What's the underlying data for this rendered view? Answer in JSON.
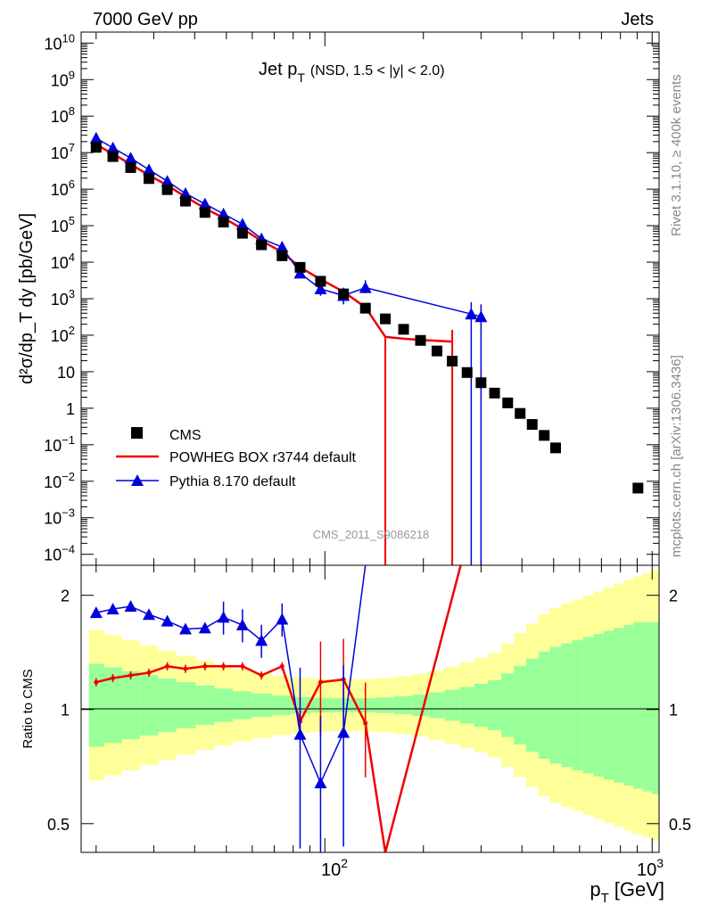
{
  "header": {
    "left": "7000 GeV pp",
    "right": "Jets"
  },
  "side_labels": {
    "rivet": "Rivet 3.1.10, ≥ 400k events",
    "mcplots": "mcplots.cern.ch [arXiv:1306.3436]"
  },
  "watermark": "CMS_2011_S9086218",
  "colors": {
    "cms": "#000000",
    "powheg": "#ee0000",
    "pythia": "#0000dd",
    "band_inner": "#99ff99",
    "band_outer": "#ffff99"
  },
  "chart_data": [
    {
      "type": "scatter",
      "title": "Jet p_T (NSD, 1.5 < |y| < 2.0)",
      "title_main": "Jet p",
      "title_sub": "T",
      "title_tail": "(NSD, 1.5 < |y| < 2.0)",
      "ylabel": "d²σ/dp_T dy [pb/GeV]",
      "yscale": "log",
      "xscale": "log",
      "ylim": [
        5e-05,
        20000000000
      ],
      "xlim": [
        18,
        1050
      ],
      "legend_position": "bottom-left",
      "ytick_labels": [
        "10^-4",
        "10^-3",
        "10^-2",
        "10^-1",
        "1",
        "10",
        "10^2",
        "10^3",
        "10^4",
        "10^5",
        "10^6",
        "10^7",
        "10^8",
        "10^9",
        "10^10"
      ],
      "series": [
        {
          "name": "CMS",
          "marker": "square",
          "x": [
            20,
            22.5,
            25.5,
            29,
            33,
            37.5,
            43,
            49,
            56,
            64,
            74,
            84,
            97,
            114,
            133,
            153,
            174,
            196,
            220,
            245,
            272,
            300,
            330,
            362,
            395,
            430,
            468,
            507,
            548,
            592,
            638,
            686,
            737,
            790,
            846,
            905,
            967,
            1032
          ],
          "y": [
            14000000,
            7800000,
            3900000,
            1950000,
            970000,
            470000,
            230000,
            125000,
            62000,
            30000,
            15000,
            7200,
            3000,
            1350,
            550,
            280,
            145,
            72,
            37,
            19.5,
            9.5,
            5.0,
            2.6,
            1.4,
            0.72,
            0.36,
            0.18,
            0.082,
            null,
            null,
            null,
            null,
            null,
            null,
            null,
            null,
            null,
            null
          ]
        },
        {
          "name": "CMS",
          "marker": "square",
          "x": [
            905
          ],
          "y": [
            0.0065
          ]
        },
        {
          "name": "POWHEG BOX r3744 default",
          "marker": "line",
          "x": [
            20,
            22.5,
            25.5,
            29,
            33,
            37.5,
            43,
            49,
            56,
            64,
            74,
            84,
            97,
            114,
            133,
            153,
            174,
            196,
            220,
            245
          ],
          "y": [
            16500000,
            9300000,
            4800000,
            2400000,
            1270000,
            620000,
            300000,
            162000,
            82000,
            38500,
            19000,
            7200,
            3400,
            1550,
            580,
            90,
            80,
            74,
            70,
            67
          ]
        },
        {
          "name": "Pythia 8.170 default",
          "marker": "triangle",
          "x": [
            20,
            22.5,
            25.5,
            29,
            33,
            37.5,
            43,
            49,
            56,
            64,
            74,
            84,
            97,
            114,
            133,
            280,
            300
          ],
          "y": [
            25000000,
            13500000,
            7100000,
            3400000,
            1650000,
            760000,
            395000,
            210000,
            110000,
            44000,
            26000,
            5000,
            1850,
            1220,
            2000,
            380,
            320
          ]
        }
      ],
      "legend": [
        "CMS",
        "POWHEG BOX r3744 default",
        "Pythia 8.170 default"
      ]
    },
    {
      "type": "line",
      "ylabel": "Ratio to CMS",
      "xlabel": "p_T [GeV]",
      "xlabel_main": "p",
      "xlabel_sub": "T",
      "xlabel_tail": "[GeV]",
      "xscale": "log",
      "yscale": "log",
      "ylim": [
        0.42,
        2.4
      ],
      "ytick_labels": [
        "0.5",
        "1",
        "2"
      ],
      "xtick_labels": [
        "10^2",
        "10^3"
      ],
      "series": [
        {
          "name": "POWHEG BOX r3744 default",
          "x": [
            20,
            22.5,
            25.5,
            29,
            33,
            37.5,
            43,
            49,
            56,
            64,
            74,
            84,
            97,
            114,
            133,
            153
          ],
          "y": [
            1.18,
            1.21,
            1.23,
            1.25,
            1.3,
            1.28,
            1.3,
            1.3,
            1.3,
            1.23,
            1.3,
            0.93,
            1.18,
            1.2,
            0.92,
            0.35
          ]
        },
        {
          "name": "Pythia 8.170 default",
          "x": [
            20,
            22.5,
            25.5,
            29,
            33,
            37.5,
            43,
            49,
            56,
            64,
            74,
            84,
            97,
            114,
            133
          ],
          "y": [
            1.8,
            1.84,
            1.87,
            1.78,
            1.71,
            1.63,
            1.64,
            1.75,
            1.67,
            1.52,
            1.73,
            0.86,
            0.64,
            0.87,
            3.6
          ]
        }
      ]
    }
  ]
}
